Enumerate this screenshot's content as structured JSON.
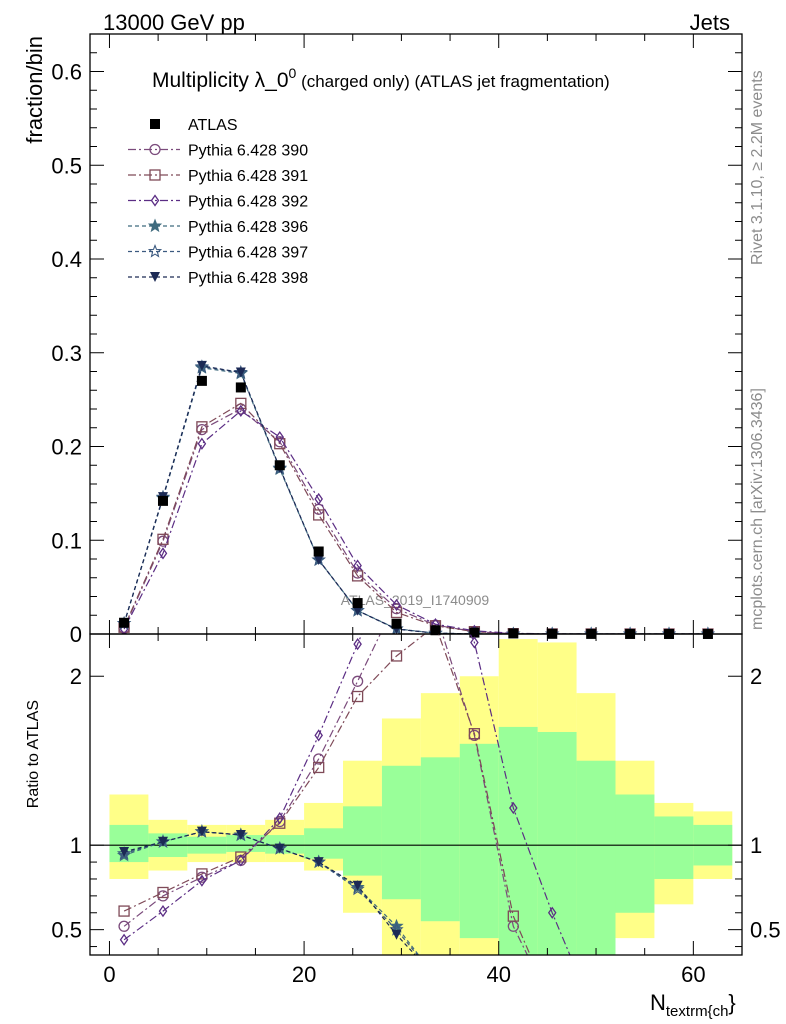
{
  "header": {
    "left": "13000 GeV pp",
    "right": "Jets"
  },
  "side_text": {
    "upper": "Rivet 3.1.10, ≥ 2.2M events",
    "lower": "mcplots.cern.ch [arXiv:1306.3436]"
  },
  "watermark": "ATLAS_2019_I1740909",
  "chart_data": {
    "type": "line",
    "title": "Multiplicity λ_0",
    "title_superscript": "0",
    "title_suffix": " (charged only) (ATLAS jet fragmentation)",
    "ylabel": "fraction/bin",
    "ratio_ylabel": "Ratio to ATLAS",
    "xlabel_main": "N",
    "xlabel_sub": "textrm{ch",
    "xlabel_end": "}",
    "xlim": [
      -2,
      65
    ],
    "ylim": [
      0,
      0.64
    ],
    "ratio_ylim": [
      0.35,
      2.25
    ],
    "x_ticks": [
      "0",
      "20",
      "40",
      "60"
    ],
    "y_ticks": [
      "0",
      "0.1",
      "0.2",
      "0.3",
      "0.4",
      "0.5",
      "0.6"
    ],
    "ratio_y_ticks": [
      "0.5",
      "1",
      "2"
    ],
    "x": [
      1.5,
      5.5,
      9.5,
      13.5,
      17.5,
      21.5,
      25.5,
      29.5,
      33.5,
      37.5,
      41.5,
      45.5,
      49.5,
      53.5,
      57.5,
      61.5
    ],
    "data": {
      "name": "ATLAS",
      "values": [
        0.012,
        0.142,
        0.27,
        0.263,
        0.18,
        0.088,
        0.033,
        0.011,
        0.004,
        0.0015,
        0.0006,
        0.0002,
        0.0001,
        5e-05,
        3e-05,
        2e-05
      ]
    },
    "band_edges": [
      0,
      4,
      8,
      12,
      16,
      20,
      24,
      28,
      32,
      36,
      40,
      44,
      48,
      52,
      56,
      60,
      64
    ],
    "band_green": [
      [
        0.9,
        1.12
      ],
      [
        0.93,
        1.07
      ],
      [
        0.95,
        1.05
      ],
      [
        0.96,
        1.06
      ],
      [
        0.95,
        1.06
      ],
      [
        0.92,
        1.1
      ],
      [
        0.82,
        1.23
      ],
      [
        0.68,
        1.47
      ],
      [
        0.55,
        1.52
      ],
      [
        0.45,
        1.6
      ],
      [
        0.3,
        1.7
      ],
      [
        0.3,
        1.67
      ],
      [
        0.3,
        1.5
      ],
      [
        0.6,
        1.3
      ],
      [
        0.8,
        1.17
      ],
      [
        0.88,
        1.12
      ]
    ],
    "band_yellow": [
      [
        0.8,
        1.3
      ],
      [
        0.85,
        1.15
      ],
      [
        0.9,
        1.12
      ],
      [
        0.9,
        1.12
      ],
      [
        0.9,
        1.15
      ],
      [
        0.85,
        1.25
      ],
      [
        0.6,
        1.5
      ],
      [
        0.3,
        1.75
      ],
      [
        0.3,
        1.9
      ],
      [
        0.3,
        2.0
      ],
      [
        0.3,
        2.22
      ],
      [
        0.3,
        2.2
      ],
      [
        0.3,
        1.9
      ],
      [
        0.45,
        1.5
      ],
      [
        0.65,
        1.25
      ],
      [
        0.8,
        1.2
      ]
    ],
    "series": [
      {
        "name": "Pythia 6.428 390",
        "marker": "circle",
        "color": "#7b4b7c",
        "dash": "8,3,2,3",
        "values": [
          0.0062,
          0.099,
          0.218,
          0.24,
          0.205,
          0.133,
          0.065,
          0.027,
          0.0095,
          0.0025,
          0.0003,
          5e-05,
          2e-05,
          1e-05,
          1e-05,
          1e-05
        ],
        "ratio": [
          0.52,
          0.7,
          0.81,
          0.91,
          1.14,
          1.51,
          1.97,
          2.45,
          2.38,
          1.65,
          0.52,
          0.05,
          0.05,
          0.05,
          0.05,
          0.05
        ]
      },
      {
        "name": "Pythia 6.428 391",
        "marker": "square",
        "color": "#7f4a58",
        "dash": "8,3,2,3",
        "values": [
          0.0072,
          0.101,
          0.221,
          0.246,
          0.203,
          0.127,
          0.062,
          0.023,
          0.0088,
          0.0025,
          0.00035,
          5e-05,
          2e-05,
          1e-05,
          1e-05,
          1e-05
        ],
        "ratio": [
          0.61,
          0.72,
          0.83,
          0.93,
          1.13,
          1.46,
          1.88,
          2.12,
          2.3,
          1.66,
          0.58,
          0.05,
          0.05,
          0.05,
          0.05,
          0.05
        ]
      },
      {
        "name": "Pythia 6.428 392",
        "marker": "diamond",
        "color": "#5b2d84",
        "dash": "8,3,2,3",
        "values": [
          0.0052,
          0.086,
          0.203,
          0.238,
          0.21,
          0.144,
          0.073,
          0.031,
          0.0105,
          0.0034,
          0.0007,
          0.00012,
          2e-05,
          1e-05,
          1e-05,
          1e-05
        ],
        "ratio": [
          0.44,
          0.61,
          0.79,
          0.91,
          1.16,
          1.65,
          2.19,
          2.75,
          2.65,
          2.2,
          1.22,
          0.6,
          0.05,
          0.05,
          0.05,
          0.05
        ]
      },
      {
        "name": "Pythia 6.428 396",
        "marker": "star",
        "color": "#3f6b7e",
        "dash": "4,3",
        "values": [
          0.0112,
          0.145,
          0.284,
          0.278,
          0.176,
          0.079,
          0.025,
          0.0056,
          0.0009,
          0.0001,
          1e-05,
          1e-05,
          1e-05,
          1e-05,
          1e-05,
          1e-05
        ],
        "ratio": [
          0.94,
          1.02,
          1.08,
          1.06,
          0.98,
          0.9,
          0.75,
          0.52,
          0.22,
          0.05,
          0.05,
          0.05,
          0.05,
          0.05,
          0.05,
          0.05
        ]
      },
      {
        "name": "Pythia 6.428 397",
        "marker": "star-open",
        "color": "#3c5a80",
        "dash": "4,3",
        "values": [
          0.0113,
          0.146,
          0.285,
          0.279,
          0.177,
          0.079,
          0.025,
          0.0054,
          0.0009,
          0.0001,
          1e-05,
          1e-05,
          1e-05,
          1e-05,
          1e-05,
          1e-05
        ],
        "ratio": [
          0.95,
          1.02,
          1.08,
          1.06,
          0.98,
          0.9,
          0.74,
          0.5,
          0.22,
          0.05,
          0.05,
          0.05,
          0.05,
          0.05,
          0.05,
          0.05
        ]
      },
      {
        "name": "Pythia 6.428 398",
        "marker": "triangle-down",
        "color": "#1c2a55",
        "dash": "4,3",
        "values": [
          0.0114,
          0.146,
          0.286,
          0.279,
          0.177,
          0.079,
          0.025,
          0.0052,
          0.0009,
          0.0001,
          1e-05,
          1e-05,
          1e-05,
          1e-05,
          1e-05,
          1e-05
        ],
        "ratio": [
          0.96,
          1.02,
          1.08,
          1.06,
          0.98,
          0.9,
          0.76,
          0.47,
          0.22,
          0.05,
          0.05,
          0.05,
          0.05,
          0.05,
          0.05,
          0.05
        ]
      }
    ],
    "colors": {
      "band_green": "#99ff99",
      "band_yellow": "#ffff88",
      "data_marker": "#000000"
    }
  }
}
